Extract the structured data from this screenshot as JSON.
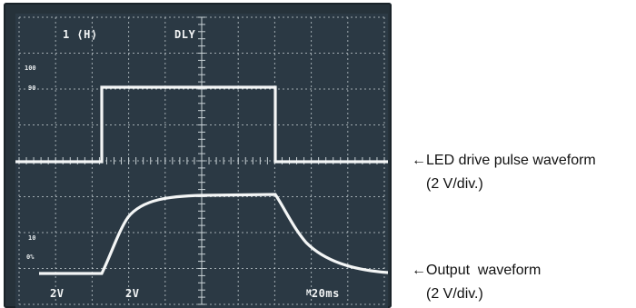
{
  "scope": {
    "channel_label": "1 ⟨H⟩",
    "mode_label": "DLY",
    "level_marker_top": "100",
    "level_marker_upper": "90",
    "level_marker_lower": "10",
    "level_marker_bottom": "0%",
    "ch1_scale": "2V",
    "ch2_scale": "2V",
    "timebase": "M20ms",
    "timebase_prefix": "M",
    "timebase_value": "20ms",
    "colors": {
      "screen": "#2b3944",
      "grid": "#c9d2d6",
      "trace": "#f4f6f6"
    }
  },
  "annotations": {
    "led_label": "←LED drive pulse waveform",
    "led_unit": "(2 V/div.)",
    "output_label": "←Output  waveform",
    "output_unit": "(2 V/div.)"
  }
}
